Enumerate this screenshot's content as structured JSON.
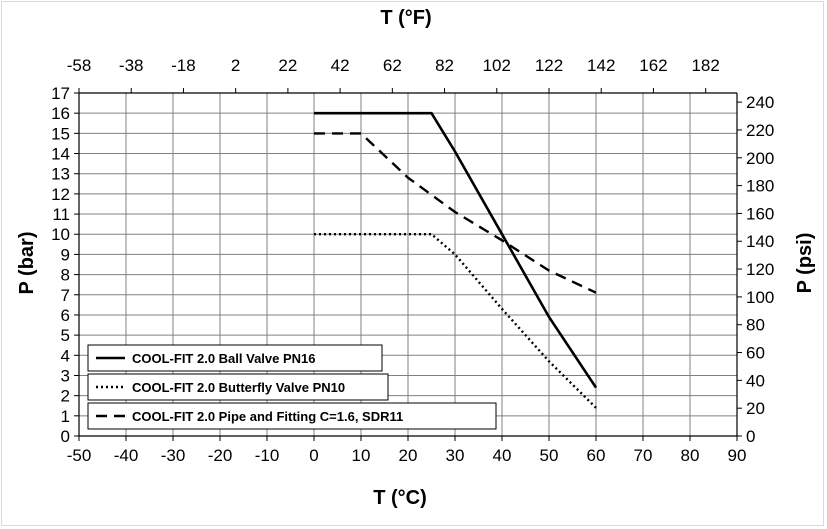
{
  "chart_data": {
    "type": "line",
    "xlabel": "T (°C)",
    "x2label": "T (°F)",
    "ylabel": "P (bar)",
    "y2label": "P (psi)",
    "xlim": [
      -50,
      90
    ],
    "ylim": [
      0,
      17
    ],
    "x_ticks": [
      -50,
      -40,
      -30,
      -20,
      -10,
      0,
      10,
      20,
      30,
      40,
      50,
      60,
      70,
      80,
      90
    ],
    "x2_ticks": [
      -58,
      -38,
      -18,
      2,
      22,
      42,
      62,
      82,
      102,
      122,
      142,
      162,
      182
    ],
    "y_ticks": [
      0,
      1,
      2,
      3,
      4,
      5,
      6,
      7,
      8,
      9,
      10,
      11,
      12,
      13,
      14,
      15,
      16,
      17
    ],
    "y2_ticks": [
      0,
      20,
      40,
      60,
      80,
      100,
      120,
      140,
      160,
      180,
      200,
      220,
      240
    ],
    "grid": true,
    "legend": "bottom-left",
    "series": [
      {
        "name": "COOL-FIT 2.0 Ball Valve PN16",
        "style": "solid",
        "color": "#000000",
        "x": [
          0,
          25,
          30,
          40,
          50,
          60
        ],
        "y": [
          16,
          16,
          14.1,
          10,
          5.9,
          2.4
        ]
      },
      {
        "name": "COOL-FIT 2.0 Butterfly Valve PN10",
        "style": "dotted",
        "color": "#000000",
        "x": [
          0,
          25,
          30,
          40,
          50,
          60
        ],
        "y": [
          10,
          10,
          9,
          6.3,
          3.7,
          1.4
        ]
      },
      {
        "name": "COOL-FIT 2.0 Pipe and Fitting C=1.6, SDR11",
        "style": "dashed",
        "color": "#000000",
        "x": [
          0,
          10,
          20,
          30,
          40,
          50,
          60
        ],
        "y": [
          15,
          15,
          12.8,
          11.1,
          9.7,
          8.2,
          7.1
        ]
      }
    ]
  }
}
